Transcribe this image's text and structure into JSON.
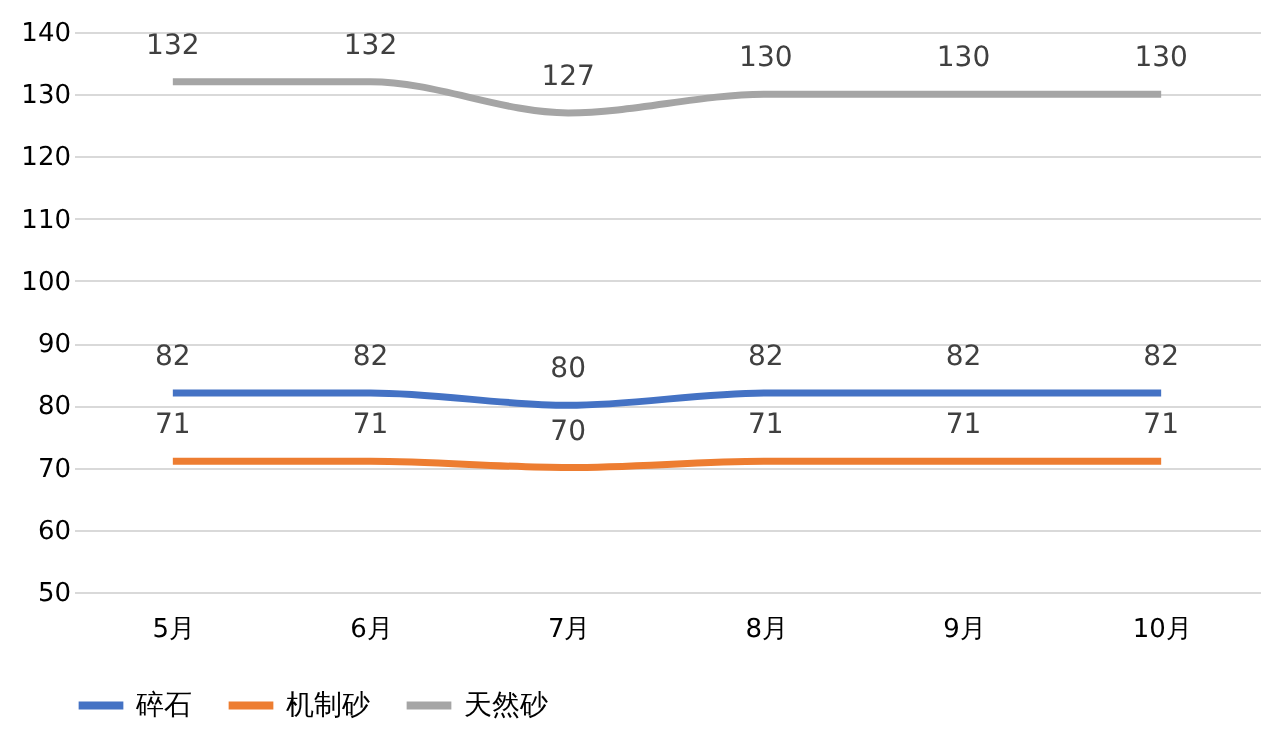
{
  "chart_data": {
    "type": "line",
    "categories": [
      "5月",
      "6月",
      "7月",
      "8月",
      "9月",
      "10月"
    ],
    "series": [
      {
        "name": "碎石",
        "color": "#4472c4",
        "values": [
          82,
          82,
          80,
          82,
          82,
          82
        ]
      },
      {
        "name": "机制砂",
        "color": "#ed7d31",
        "values": [
          71,
          71,
          70,
          71,
          71,
          71
        ]
      },
      {
        "name": "天然砂",
        "color": "#a5a5a5",
        "values": [
          132,
          132,
          127,
          130,
          130,
          130
        ]
      }
    ],
    "ylim": [
      50,
      140
    ],
    "yticks": [
      50,
      60,
      70,
      80,
      90,
      100,
      110,
      120,
      130,
      140
    ],
    "grid": "y",
    "legend": "bottom",
    "data_labels": true,
    "marker": "none",
    "line_style": "solid"
  }
}
